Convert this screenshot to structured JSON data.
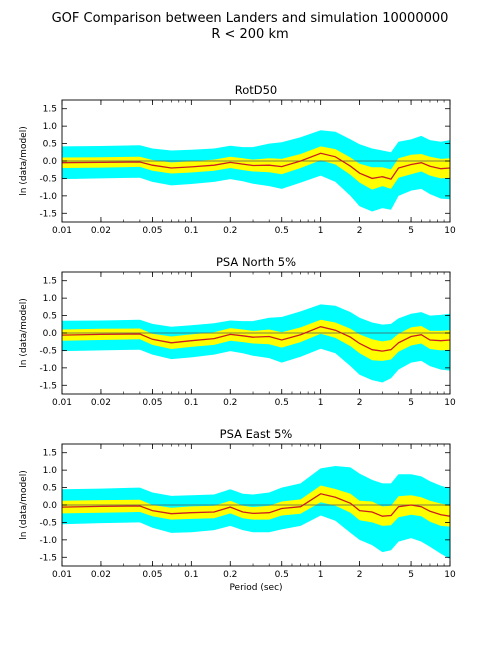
{
  "figure": {
    "title_line1": "GOF Comparison between Landers and simulation 10000000",
    "title_line2": "R < 200 km"
  },
  "colors": {
    "outer_band": "#00ffff",
    "inner_band": "#ffff00",
    "mean_line": "#cc1f1f",
    "zero_line": "#555555"
  },
  "chart_data": [
    {
      "type": "area",
      "title": "RotD50",
      "xlabel": "",
      "ylabel": "ln (data/model)",
      "xscale": "log",
      "xlim": [
        0.01,
        10
      ],
      "ylim": [
        -1.75,
        1.75
      ],
      "xticks": [
        "0.01",
        "0.02",
        "0.05",
        "0.1",
        "0.2",
        "0.5",
        "1",
        "2",
        "5",
        "10"
      ],
      "yticks": [
        "1.5",
        "1.0",
        "0.5",
        "0.0",
        "-0.5",
        "-1.0",
        "-1.5"
      ],
      "series": [
        {
          "name": "",
          "x": [
            0.01,
            0.02,
            0.04,
            0.05,
            0.07,
            0.1,
            0.15,
            0.2,
            0.25,
            0.3,
            0.4,
            0.5,
            0.7,
            1.0,
            1.3,
            1.7,
            2.0,
            2.5,
            3.0,
            3.5,
            4.0,
            5.0,
            6.0,
            7.0,
            8.5,
            10
          ],
          "mean": [
            -0.05,
            -0.04,
            -0.03,
            -0.12,
            -0.2,
            -0.17,
            -0.12,
            -0.04,
            -0.09,
            -0.13,
            -0.12,
            -0.16,
            0.0,
            0.22,
            0.12,
            -0.15,
            -0.35,
            -0.5,
            -0.45,
            -0.52,
            -0.2,
            -0.1,
            -0.05,
            -0.15,
            -0.22,
            -0.2
          ],
          "inner_low": [
            -0.2,
            -0.19,
            -0.17,
            -0.28,
            -0.36,
            -0.33,
            -0.28,
            -0.2,
            -0.26,
            -0.3,
            -0.32,
            -0.38,
            -0.2,
            0.02,
            -0.1,
            -0.4,
            -0.62,
            -0.82,
            -0.72,
            -0.8,
            -0.48,
            -0.38,
            -0.3,
            -0.42,
            -0.5,
            -0.48
          ],
          "inner_high": [
            0.1,
            0.11,
            0.12,
            0.03,
            -0.04,
            -0.01,
            0.04,
            0.12,
            0.08,
            0.04,
            0.08,
            0.06,
            0.2,
            0.42,
            0.34,
            0.1,
            -0.08,
            -0.18,
            -0.18,
            -0.24,
            0.08,
            0.18,
            0.2,
            0.12,
            0.06,
            0.08
          ],
          "outer_low": [
            -0.52,
            -0.5,
            -0.48,
            -0.6,
            -0.7,
            -0.66,
            -0.6,
            -0.52,
            -0.58,
            -0.65,
            -0.72,
            -0.8,
            -0.62,
            -0.42,
            -0.6,
            -1.0,
            -1.3,
            -1.45,
            -1.35,
            -1.4,
            -1.0,
            -0.85,
            -0.8,
            -0.95,
            -1.08,
            -1.1
          ],
          "outer_high": [
            0.42,
            0.43,
            0.45,
            0.36,
            0.3,
            0.32,
            0.36,
            0.44,
            0.4,
            0.4,
            0.5,
            0.54,
            0.68,
            0.88,
            0.84,
            0.62,
            0.48,
            0.36,
            0.3,
            0.25,
            0.55,
            0.62,
            0.72,
            0.6,
            0.55,
            0.6
          ]
        }
      ]
    },
    {
      "type": "area",
      "title": "PSA North 5%",
      "xlabel": "",
      "ylabel": "ln (data/model)",
      "xscale": "log",
      "xlim": [
        0.01,
        10
      ],
      "ylim": [
        -1.75,
        1.75
      ],
      "xticks": [
        "0.01",
        "0.02",
        "0.05",
        "0.1",
        "0.2",
        "0.5",
        "1",
        "2",
        "5",
        "10"
      ],
      "yticks": [
        "1.5",
        "1.0",
        "0.5",
        "0.0",
        "-0.5",
        "-1.0",
        "-1.5"
      ],
      "series": [
        {
          "name": "",
          "x": [
            0.01,
            0.02,
            0.04,
            0.05,
            0.07,
            0.1,
            0.15,
            0.2,
            0.25,
            0.3,
            0.4,
            0.5,
            0.7,
            1.0,
            1.3,
            1.7,
            2.0,
            2.5,
            3.0,
            3.5,
            4.0,
            5.0,
            6.0,
            7.0,
            8.5,
            10
          ],
          "mean": [
            -0.06,
            -0.04,
            -0.03,
            -0.18,
            -0.28,
            -0.22,
            -0.16,
            -0.04,
            -0.08,
            -0.12,
            -0.1,
            -0.2,
            -0.05,
            0.18,
            0.08,
            -0.12,
            -0.3,
            -0.48,
            -0.52,
            -0.48,
            -0.28,
            -0.1,
            -0.05,
            -0.2,
            -0.22,
            -0.2
          ],
          "inner_low": [
            -0.22,
            -0.2,
            -0.18,
            -0.34,
            -0.46,
            -0.4,
            -0.34,
            -0.22,
            -0.26,
            -0.3,
            -0.32,
            -0.42,
            -0.26,
            -0.02,
            -0.14,
            -0.38,
            -0.58,
            -0.78,
            -0.8,
            -0.76,
            -0.54,
            -0.36,
            -0.3,
            -0.46,
            -0.5,
            -0.48
          ],
          "inner_high": [
            0.1,
            0.12,
            0.13,
            -0.02,
            -0.1,
            -0.04,
            0.02,
            0.14,
            0.1,
            0.06,
            0.1,
            0.02,
            0.16,
            0.38,
            0.3,
            0.12,
            -0.04,
            -0.18,
            -0.24,
            -0.2,
            -0.02,
            0.16,
            0.2,
            0.06,
            0.06,
            0.08
          ],
          "outer_low": [
            -0.52,
            -0.5,
            -0.48,
            -0.62,
            -0.75,
            -0.7,
            -0.62,
            -0.52,
            -0.58,
            -0.65,
            -0.72,
            -0.85,
            -0.68,
            -0.45,
            -0.58,
            -0.95,
            -1.2,
            -1.35,
            -1.42,
            -1.3,
            -1.05,
            -0.85,
            -0.8,
            -0.95,
            -1.05,
            -1.08
          ],
          "outer_high": [
            0.35,
            0.36,
            0.38,
            0.26,
            0.18,
            0.22,
            0.28,
            0.36,
            0.34,
            0.34,
            0.44,
            0.46,
            0.62,
            0.82,
            0.78,
            0.6,
            0.44,
            0.3,
            0.24,
            0.26,
            0.42,
            0.55,
            0.6,
            0.5,
            0.52,
            0.55
          ]
        }
      ]
    },
    {
      "type": "area",
      "title": "PSA East 5%",
      "xlabel": "Period (sec)",
      "ylabel": "ln (data/model)",
      "xscale": "log",
      "xlim": [
        0.01,
        10
      ],
      "ylim": [
        -1.75,
        1.75
      ],
      "xticks": [
        "0.01",
        "0.02",
        "0.05",
        "0.1",
        "0.2",
        "0.5",
        "1",
        "2",
        "5",
        "10"
      ],
      "yticks": [
        "1.5",
        "1.0",
        "0.5",
        "0.0",
        "-0.5",
        "-1.0",
        "-1.5"
      ],
      "series": [
        {
          "name": "",
          "x": [
            0.01,
            0.02,
            0.04,
            0.05,
            0.07,
            0.1,
            0.15,
            0.2,
            0.25,
            0.3,
            0.4,
            0.5,
            0.7,
            1.0,
            1.3,
            1.7,
            2.0,
            2.5,
            3.0,
            3.5,
            4.0,
            5.0,
            6.0,
            7.0,
            8.5,
            10
          ],
          "mean": [
            -0.06,
            -0.04,
            -0.03,
            -0.16,
            -0.25,
            -0.22,
            -0.2,
            -0.06,
            -0.2,
            -0.24,
            -0.22,
            -0.1,
            -0.05,
            0.32,
            0.22,
            0.05,
            -0.16,
            -0.2,
            -0.32,
            -0.3,
            -0.05,
            0.0,
            -0.05,
            -0.18,
            -0.28,
            -0.32
          ],
          "inner_low": [
            -0.24,
            -0.22,
            -0.2,
            -0.32,
            -0.42,
            -0.4,
            -0.38,
            -0.24,
            -0.38,
            -0.42,
            -0.42,
            -0.3,
            -0.25,
            0.08,
            -0.02,
            -0.22,
            -0.44,
            -0.5,
            -0.6,
            -0.58,
            -0.35,
            -0.28,
            -0.32,
            -0.48,
            -0.6,
            -0.62
          ],
          "inner_high": [
            0.12,
            0.14,
            0.15,
            0.0,
            -0.08,
            -0.04,
            -0.02,
            0.12,
            -0.02,
            -0.06,
            -0.02,
            0.1,
            0.16,
            0.56,
            0.46,
            0.32,
            0.12,
            0.1,
            -0.04,
            -0.02,
            0.25,
            0.28,
            0.22,
            0.12,
            0.04,
            0.0
          ],
          "outer_low": [
            -0.55,
            -0.52,
            -0.5,
            -0.65,
            -0.8,
            -0.78,
            -0.72,
            -0.6,
            -0.72,
            -0.78,
            -0.78,
            -0.7,
            -0.6,
            -0.3,
            -0.45,
            -0.8,
            -1.0,
            -1.15,
            -1.35,
            -1.3,
            -1.05,
            -0.95,
            -1.05,
            -1.2,
            -1.4,
            -1.55
          ],
          "outer_high": [
            0.45,
            0.47,
            0.5,
            0.36,
            0.26,
            0.28,
            0.3,
            0.45,
            0.32,
            0.3,
            0.36,
            0.5,
            0.62,
            1.05,
            1.12,
            1.08,
            0.9,
            0.72,
            0.62,
            0.62,
            0.88,
            0.88,
            0.82,
            0.68,
            0.55,
            0.48
          ]
        }
      ]
    }
  ]
}
